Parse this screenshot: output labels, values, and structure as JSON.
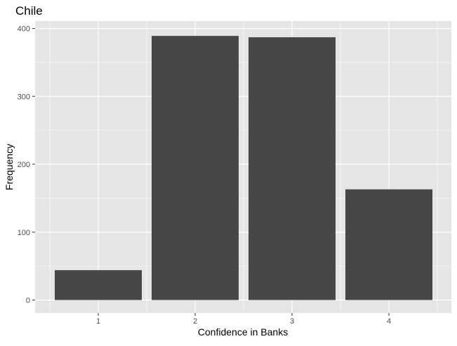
{
  "chart_data": {
    "type": "bar",
    "title": "Chile",
    "xlabel": "Confidence in Banks",
    "ylabel": "Frequency",
    "categories": [
      "1",
      "2",
      "3",
      "4"
    ],
    "values": [
      44,
      389,
      387,
      163
    ],
    "ylim": [
      0,
      400
    ],
    "yticks": [
      0,
      100,
      200,
      300,
      400
    ],
    "grid": true,
    "colors": {
      "panel": "#e5e5e5",
      "grid_major": "#ffffff",
      "bar": "#474747",
      "tick_text": "#4d4d4d"
    }
  }
}
